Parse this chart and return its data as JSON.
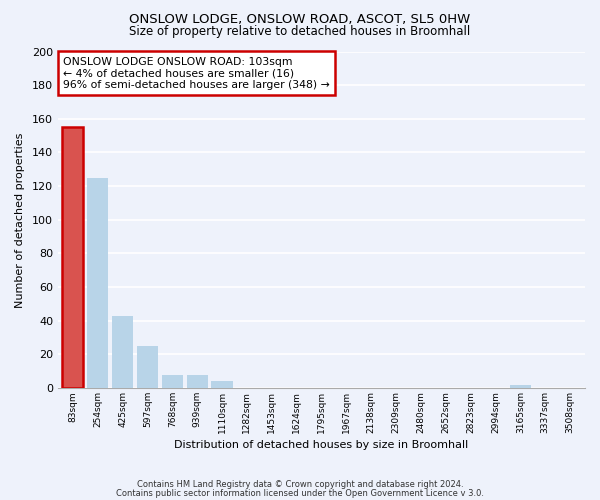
{
  "title1": "ONSLOW LODGE, ONSLOW ROAD, ASCOT, SL5 0HW",
  "title2": "Size of property relative to detached houses in Broomhall",
  "xlabel": "Distribution of detached houses by size in Broomhall",
  "ylabel": "Number of detached properties",
  "bar_values": [
    155,
    125,
    43,
    25,
    8,
    8,
    4,
    0,
    0,
    0,
    0,
    0,
    0,
    0,
    0,
    0,
    0,
    0,
    2,
    0,
    0
  ],
  "bin_labels": [
    "83sqm",
    "254sqm",
    "425sqm",
    "597sqm",
    "768sqm",
    "939sqm",
    "1110sqm",
    "1282sqm",
    "1453sqm",
    "1624sqm",
    "1795sqm",
    "1967sqm",
    "2138sqm",
    "2309sqm",
    "2480sqm",
    "2652sqm",
    "2823sqm",
    "2994sqm",
    "3165sqm",
    "3337sqm",
    "3508sqm"
  ],
  "bar_color": "#b8d4e8",
  "highlight_bar_color": "#d9534f",
  "highlight_index": 0,
  "annotation_line1": "ONSLOW LODGE ONSLOW ROAD: 103sqm",
  "annotation_line2": "← 4% of detached houses are smaller (16)",
  "annotation_line3": "96% of semi-detached houses are larger (348) →",
  "box_facecolor": "#ffffff",
  "box_edgecolor": "#cc0000",
  "ylim": [
    0,
    200
  ],
  "yticks": [
    0,
    20,
    40,
    60,
    80,
    100,
    120,
    140,
    160,
    180,
    200
  ],
  "footer1": "Contains HM Land Registry data © Crown copyright and database right 2024.",
  "footer2": "Contains public sector information licensed under the Open Government Licence v 3.0.",
  "bg_color": "#eef2fb"
}
